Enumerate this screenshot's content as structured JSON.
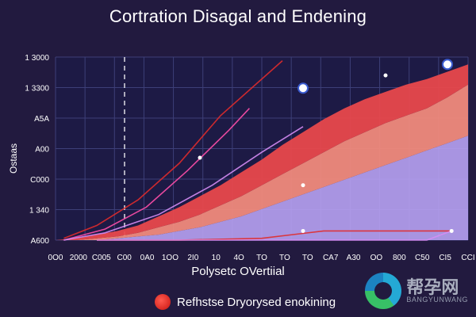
{
  "chart_data": {
    "type": "area",
    "title": "Cortration Disagal and Endening",
    "xlabel": "Polysetc OVertiial",
    "ylabel": "Ostaas",
    "y_tick_labels": [
      "1 3000",
      "1 3300",
      "A5A",
      "A00",
      "C000",
      "1 340",
      "A600"
    ],
    "x_tick_labels": [
      "0O0",
      "2000",
      "C005",
      "C00",
      "0A0",
      "1OO",
      "2I0",
      "10",
      "4O",
      "TO",
      "TO",
      "TO",
      "CA7",
      "A30",
      "OO",
      "800",
      "C50",
      "CI5",
      "CCI"
    ],
    "grid": true,
    "legend": {
      "label": "Refhstse Dryorysed enokining",
      "position": "bottom"
    },
    "colors": {
      "upper_area": "#e8484c",
      "middle_area": "#f08a7c",
      "lower_area": "#b8a2f2",
      "line_pink": "#ff4fa8",
      "line_violet": "#d68cf4",
      "line_red": "#e02b2b",
      "grid": "#3d3f78",
      "marker": "#ffffff"
    },
    "x": [
      0,
      0.05,
      0.1,
      0.15,
      0.2,
      0.25,
      0.3,
      0.35,
      0.4,
      0.45,
      0.5,
      0.55,
      0.6,
      0.65,
      0.7,
      0.75,
      0.8,
      0.85,
      0.9,
      0.95,
      1.0
    ],
    "series": [
      {
        "values": [
          0.0,
          0.01,
          0.03,
          0.05,
          0.08,
          0.13,
          0.18,
          0.24,
          0.3,
          0.37,
          0.44,
          0.52,
          0.59,
          0.66,
          0.72,
          0.77,
          0.81,
          0.85,
          0.88,
          0.92,
          0.96
        ]
      },
      {
        "values": [
          0.0,
          0.0,
          0.01,
          0.02,
          0.04,
          0.07,
          0.1,
          0.14,
          0.19,
          0.24,
          0.3,
          0.36,
          0.42,
          0.48,
          0.54,
          0.59,
          0.64,
          0.68,
          0.72,
          0.78,
          0.85
        ]
      },
      {
        "values": [
          0.0,
          0.0,
          0.0,
          0.01,
          0.02,
          0.03,
          0.05,
          0.07,
          0.1,
          0.13,
          0.17,
          0.21,
          0.25,
          0.29,
          0.33,
          0.37,
          0.41,
          0.45,
          0.49,
          0.53,
          0.57
        ]
      }
    ],
    "curves": [
      {
        "color_key": "line_red",
        "x": [
          0.02,
          0.1,
          0.2,
          0.3,
          0.4,
          0.55
        ],
        "values": [
          0.01,
          0.08,
          0.22,
          0.42,
          0.68,
          0.98
        ]
      },
      {
        "color_key": "line_pink",
        "x": [
          0.02,
          0.12,
          0.22,
          0.32,
          0.42,
          0.47
        ],
        "values": [
          0.0,
          0.06,
          0.18,
          0.38,
          0.6,
          0.72
        ]
      },
      {
        "color_key": "line_violet",
        "x": [
          0.02,
          0.12,
          0.25,
          0.38,
          0.5,
          0.6
        ],
        "values": [
          0.0,
          0.04,
          0.14,
          0.3,
          0.48,
          0.62
        ]
      },
      {
        "color_key": "line_red",
        "x": [
          0.1,
          0.3,
          0.5,
          0.65,
          0.8,
          0.96
        ],
        "values": [
          0.0,
          0.0,
          0.01,
          0.05,
          0.05,
          0.05
        ]
      },
      {
        "color_key": "line_violet",
        "x": [
          0.1,
          0.4,
          0.6,
          0.75,
          0.9,
          0.96
        ],
        "values": [
          0.0,
          0.0,
          0.0,
          0.0,
          0.0,
          0.05
        ]
      }
    ],
    "markers": [
      {
        "x": 0.6,
        "value": 0.83,
        "style": "ring"
      },
      {
        "x": 0.95,
        "value": 0.96,
        "style": "ring"
      },
      {
        "x": 0.8,
        "value": 0.9,
        "style": "dot"
      },
      {
        "x": 0.6,
        "value": 0.3,
        "style": "dot"
      },
      {
        "x": 0.35,
        "value": 0.45,
        "style": "dot"
      },
      {
        "x": 0.6,
        "value": 0.05,
        "style": "dot"
      },
      {
        "x": 0.96,
        "value": 0.05,
        "style": "dot"
      }
    ]
  },
  "watermark": {
    "cn": "帮孕网",
    "en": "BANGYUNWANG"
  }
}
